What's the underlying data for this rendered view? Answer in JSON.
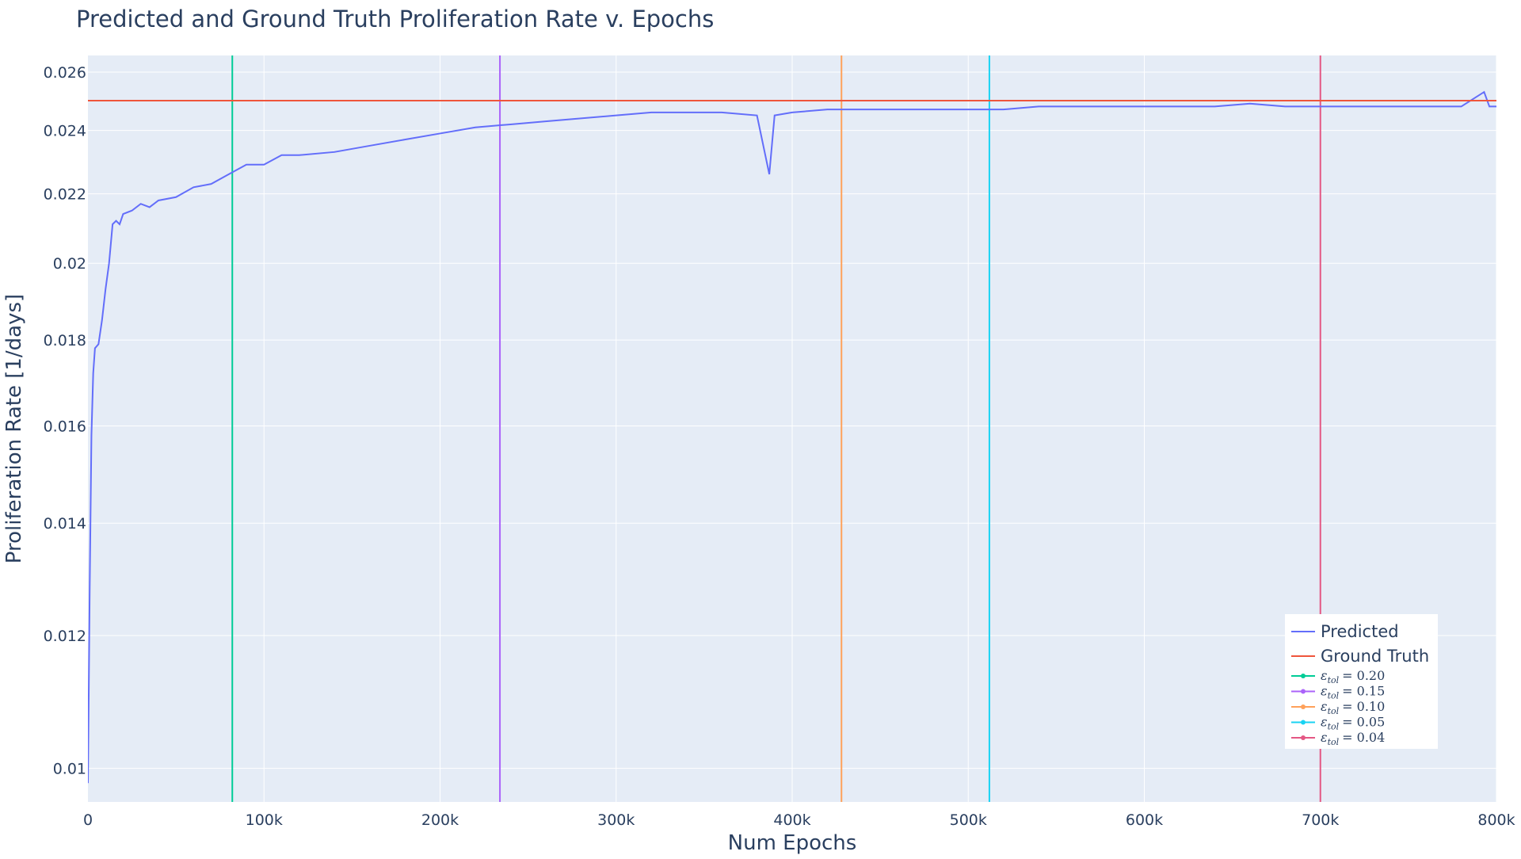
{
  "chart_data": {
    "type": "line",
    "title": "Predicted and Ground Truth Proliferation Rate v. Epochs",
    "xlabel": "Num Epochs",
    "ylabel": "Proliferation Rate [1/days]",
    "x_scale": "linear",
    "y_scale": "log",
    "xlim": [
      0,
      800000
    ],
    "ylim": [
      0.00955,
      0.0266
    ],
    "x_ticks": [
      {
        "value": 0,
        "label": "0"
      },
      {
        "value": 100000,
        "label": "100k"
      },
      {
        "value": 200000,
        "label": "200k"
      },
      {
        "value": 300000,
        "label": "300k"
      },
      {
        "value": 400000,
        "label": "400k"
      },
      {
        "value": 500000,
        "label": "500k"
      },
      {
        "value": 600000,
        "label": "600k"
      },
      {
        "value": 700000,
        "label": "700k"
      },
      {
        "value": 800000,
        "label": "800k"
      }
    ],
    "y_ticks": [
      {
        "value": 0.01,
        "label": "0.01"
      },
      {
        "value": 0.012,
        "label": "0.012"
      },
      {
        "value": 0.014,
        "label": "0.014"
      },
      {
        "value": 0.016,
        "label": "0.016"
      },
      {
        "value": 0.018,
        "label": "0.018"
      },
      {
        "value": 0.02,
        "label": "0.02"
      },
      {
        "value": 0.022,
        "label": "0.022"
      },
      {
        "value": 0.024,
        "label": "0.024"
      },
      {
        "value": 0.026,
        "label": "0.026"
      }
    ],
    "grid": true,
    "legend_position": "bottom-right",
    "series": [
      {
        "name": "Predicted",
        "color": "#636efa",
        "x": [
          0,
          1000,
          2000,
          3000,
          4000,
          6000,
          8000,
          10000,
          12000,
          14000,
          16000,
          18000,
          20000,
          25000,
          30000,
          35000,
          40000,
          50000,
          60000,
          70000,
          80000,
          90000,
          100000,
          110000,
          120000,
          140000,
          160000,
          180000,
          200000,
          220000,
          240000,
          260000,
          280000,
          300000,
          320000,
          340000,
          360000,
          380000,
          387000,
          390000,
          400000,
          420000,
          440000,
          460000,
          480000,
          500000,
          520000,
          540000,
          560000,
          580000,
          600000,
          620000,
          640000,
          660000,
          680000,
          700000,
          720000,
          740000,
          760000,
          780000,
          793000,
          796000,
          800000
        ],
        "y": [
          0.0098,
          0.0128,
          0.0158,
          0.0172,
          0.0178,
          0.0179,
          0.0185,
          0.0193,
          0.02,
          0.0211,
          0.0212,
          0.0211,
          0.0214,
          0.0215,
          0.0217,
          0.0216,
          0.0218,
          0.0219,
          0.0222,
          0.0223,
          0.0226,
          0.0229,
          0.0229,
          0.0232,
          0.0232,
          0.0233,
          0.0235,
          0.0237,
          0.0239,
          0.0241,
          0.0242,
          0.0243,
          0.0244,
          0.0245,
          0.0246,
          0.0246,
          0.0246,
          0.0245,
          0.0226,
          0.0245,
          0.0246,
          0.0247,
          0.0247,
          0.0247,
          0.0247,
          0.0247,
          0.0247,
          0.0248,
          0.0248,
          0.0248,
          0.0248,
          0.0248,
          0.0248,
          0.0249,
          0.0248,
          0.0248,
          0.0248,
          0.0248,
          0.0248,
          0.0248,
          0.0253,
          0.0248,
          0.0248
        ]
      },
      {
        "name": "Ground Truth",
        "color": "#ef553b",
        "x": [
          0,
          800000
        ],
        "y": [
          0.025,
          0.025
        ]
      }
    ],
    "vertical_lines": [
      {
        "name": "ε_tol = 0.20",
        "label_main": "ε",
        "label_sub": "tol",
        "label_value": "= 0.20",
        "x": 82000,
        "color": "#00cc96"
      },
      {
        "name": "ε_tol = 0.15",
        "label_main": "ε",
        "label_sub": "tol",
        "label_value": "= 0.15",
        "x": 234000,
        "color": "#ab63fa"
      },
      {
        "name": "ε_tol = 0.10",
        "label_main": "ε",
        "label_sub": "tol",
        "label_value": "= 0.10",
        "x": 428000,
        "color": "#ffa15a"
      },
      {
        "name": "ε_tol = 0.05",
        "label_main": "ε",
        "label_sub": "tol",
        "label_value": "= 0.05",
        "x": 512000,
        "color": "#19d3f3"
      },
      {
        "name": "ε_tol = 0.04",
        "label_main": "ε",
        "label_sub": "tol",
        "label_value": "= 0.04",
        "x": 700000,
        "color": "#e45784"
      }
    ]
  }
}
